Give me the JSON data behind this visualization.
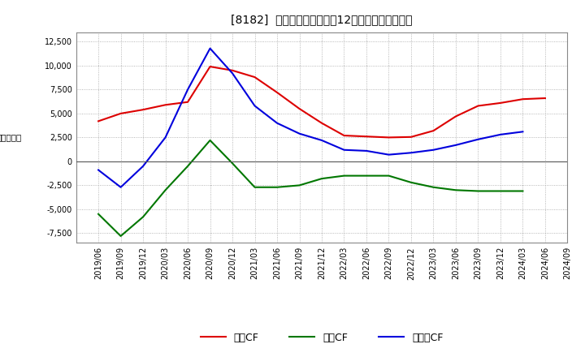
{
  "title": "[8182]  キャッシュフローの12か月移動合計の推移",
  "ylabel": "（百万円）",
  "background_color": "#ffffff",
  "plot_bg_color": "#ffffff",
  "grid_color": "#999999",
  "x_labels": [
    "2019/06",
    "2019/09",
    "2019/12",
    "2020/03",
    "2020/06",
    "2020/09",
    "2020/12",
    "2021/03",
    "2021/06",
    "2021/09",
    "2021/12",
    "2022/03",
    "2022/06",
    "2022/09",
    "2022/12",
    "2023/03",
    "2023/06",
    "2023/09",
    "2023/12",
    "2024/03",
    "2024/06",
    "2024/09"
  ],
  "series": {
    "営業CF": {
      "color": "#dd0000",
      "values": [
        4200,
        5000,
        5400,
        5900,
        6200,
        9900,
        9500,
        8800,
        7200,
        5500,
        4000,
        2700,
        2600,
        2500,
        2550,
        3200,
        4700,
        5800,
        6100,
        6500,
        6600,
        null
      ]
    },
    "投資CF": {
      "color": "#007700",
      "values": [
        -5500,
        -7800,
        -5800,
        -3000,
        -500,
        2200,
        -200,
        -2700,
        -2700,
        -2500,
        -1800,
        -1500,
        -1500,
        -1500,
        -2200,
        -2700,
        -3000,
        -3100,
        -3100,
        -3100,
        null,
        null
      ]
    },
    "フリーCF": {
      "color": "#0000dd",
      "values": [
        -900,
        -2700,
        -500,
        2500,
        7500,
        11800,
        9200,
        5800,
        4000,
        2900,
        2200,
        1200,
        1100,
        700,
        900,
        1200,
        1700,
        2300,
        2800,
        3100,
        null,
        null
      ]
    }
  },
  "ylim": [
    -8500,
    13500
  ],
  "yticks": [
    -7500,
    -5000,
    -2500,
    0,
    2500,
    5000,
    7500,
    10000,
    12500
  ],
  "legend_order": [
    "営業CF",
    "投資CF",
    "フリーCF"
  ]
}
